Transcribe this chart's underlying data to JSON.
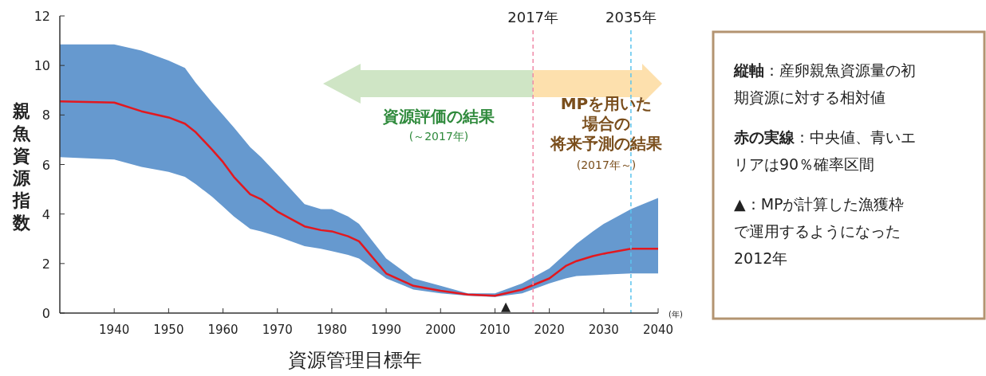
{
  "chart_data": {
    "type": "line",
    "xlabel": "資源管理目標年",
    "ylabel": "親魚資源指数",
    "xlim": [
      1930,
      2040
    ],
    "xticks": [
      1940,
      1950,
      1960,
      1970,
      1980,
      1990,
      2000,
      2010,
      2020,
      2030,
      2040
    ],
    "ylim": [
      0,
      12
    ],
    "yticks": [
      0,
      2,
      4,
      6,
      8,
      10,
      12
    ],
    "grid": false,
    "series": [
      {
        "type": "line",
        "color": "#6699cf",
        "x": [
          1930,
          1940,
          1945,
          1950,
          1953,
          1955,
          1958,
          1960,
          1962,
          1965,
          1967,
          1970,
          1975,
          1978,
          1980,
          1983,
          1985,
          1990,
          1995,
          2000,
          2005,
          2010,
          2015,
          2020,
          2023,
          2025,
          2028,
          2030,
          2035,
          2040
        ],
        "values": [
          null,
          null,
          null,
          null,
          null,
          null,
          null,
          null,
          null,
          null,
          null,
          null,
          null,
          null,
          null,
          null,
          null,
          null,
          null,
          null,
          null,
          null,
          null,
          null,
          null,
          null,
          null,
          null,
          null,
          null
        ],
        "lower": [
          6.3,
          6.2,
          5.9,
          5.7,
          5.5,
          5.2,
          4.7,
          4.3,
          3.9,
          3.4,
          3.3,
          3.1,
          2.7,
          2.6,
          2.5,
          2.35,
          2.2,
          1.4,
          0.95,
          0.8,
          0.7,
          0.65,
          0.8,
          1.2,
          1.4,
          1.5,
          1.53,
          1.55,
          1.6,
          1.6
        ],
        "upper": [
          10.85,
          10.85,
          10.6,
          10.2,
          9.9,
          9.3,
          8.5,
          8.0,
          7.5,
          6.7,
          6.3,
          5.6,
          4.4,
          4.2,
          4.2,
          3.9,
          3.6,
          2.2,
          1.4,
          1.1,
          0.8,
          0.8,
          1.2,
          1.8,
          2.4,
          2.8,
          3.3,
          3.6,
          4.2,
          4.65
        ]
      },
      {
        "type": "line",
        "color": "#e3181f",
        "x": [
          1930,
          1940,
          1945,
          1950,
          1953,
          1955,
          1958,
          1960,
          1962,
          1965,
          1967,
          1970,
          1975,
          1978,
          1980,
          1983,
          1985,
          1990,
          1995,
          2000,
          2005,
          2010,
          2015,
          2020,
          2023,
          2025,
          2028,
          2030,
          2035,
          2040
        ],
        "values": [
          8.55,
          8.5,
          8.15,
          7.9,
          7.65,
          7.3,
          6.6,
          6.1,
          5.5,
          4.8,
          4.6,
          4.1,
          3.5,
          3.35,
          3.3,
          3.1,
          2.9,
          1.6,
          1.1,
          0.9,
          0.75,
          0.7,
          0.95,
          1.4,
          1.9,
          2.1,
          2.3,
          2.4,
          2.6,
          2.6
        ]
      },
      {
        "type": "scatter",
        "marker": "triangle",
        "color": "#222222",
        "x": [
          2012
        ],
        "values": [
          0.2
        ]
      }
    ],
    "ref_lines": [
      {
        "axis": "x",
        "value": 2017,
        "label": "2017年",
        "color": "#ef8aa8",
        "line_style": "dashed"
      },
      {
        "axis": "x",
        "value": 2035,
        "label": "2035年",
        "color": "#5bc4ee",
        "line_style": "dashed"
      }
    ],
    "annotations": [
      "資源評価の結果",
      "(～2017年)",
      "MPを用いた場合の将来予測の結果",
      "(2017年～)",
      "(年)",
      "縦軸：産卵親魚資源量の初期資源に対する相対値",
      "赤の実線：中央値、青いエリアは90％確率区間",
      "▲：MPが計算した漁獲枠で運用するようになった2012年"
    ]
  }
}
